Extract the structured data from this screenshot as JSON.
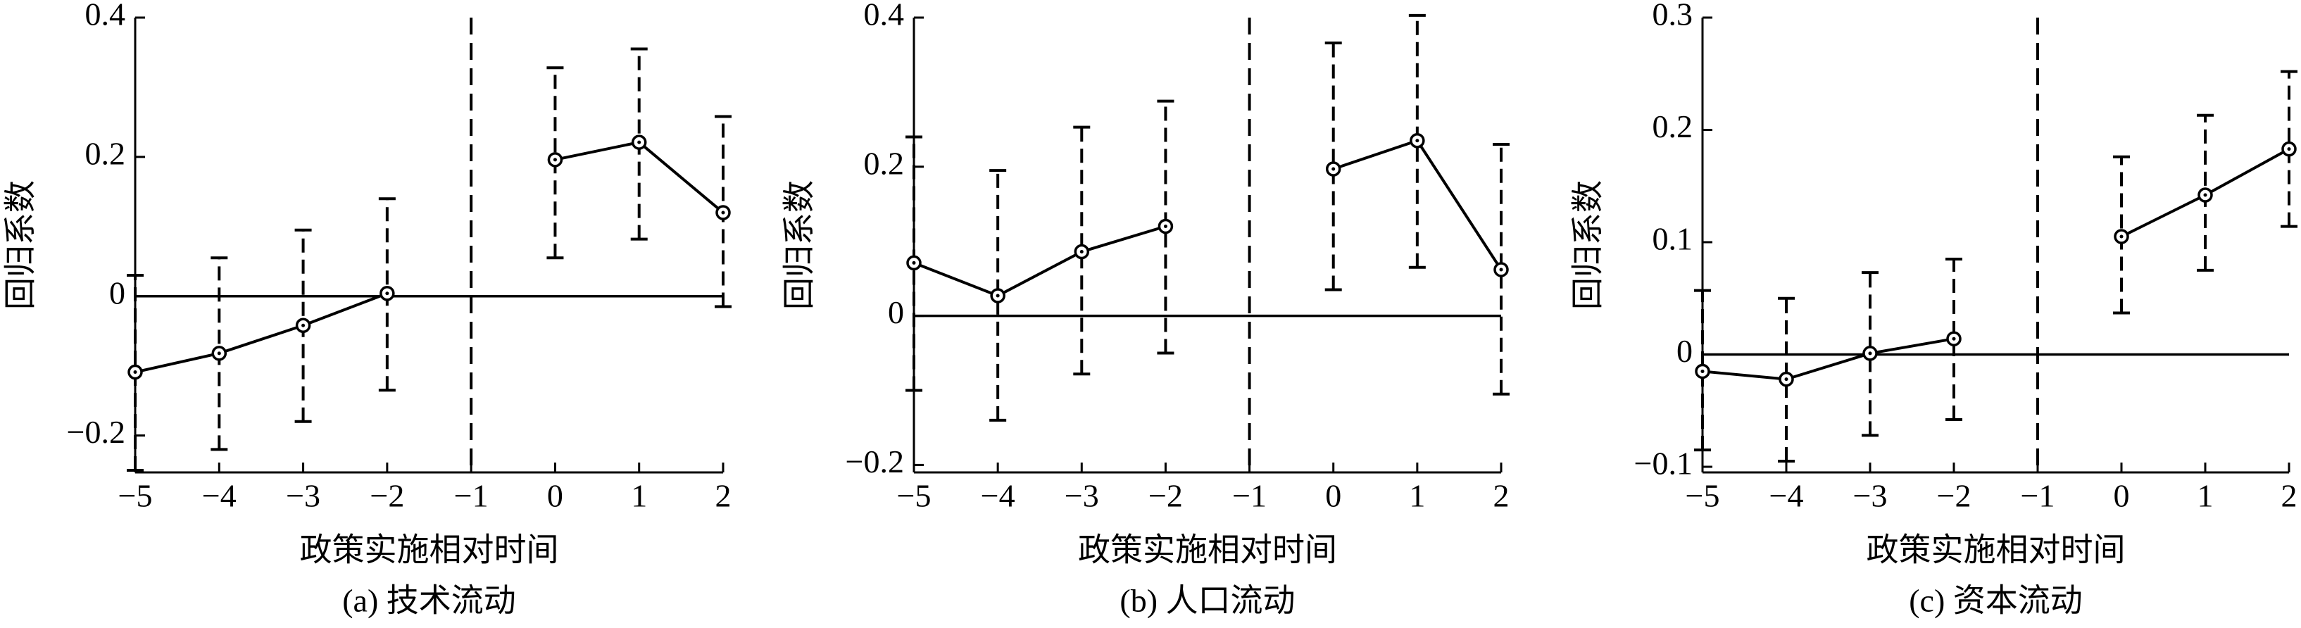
{
  "chart_data": [
    {
      "type": "line",
      "title": "(a) 技术流动",
      "xlabel": "政策实施相对时间",
      "ylabel": "回归系数",
      "x": [
        -5,
        -4,
        -3,
        -2,
        -1,
        0,
        1,
        2
      ],
      "series": [
        {
          "color": "#000000",
          "values": [
            -0.109,
            -0.082,
            -0.042,
            0.004,
            null,
            0.196,
            0.221,
            0.12
          ],
          "ci_lower": [
            -0.25,
            -0.22,
            -0.18,
            -0.135,
            null,
            0.055,
            0.082,
            -0.015
          ],
          "ci_upper": [
            0.03,
            0.055,
            0.095,
            0.14,
            null,
            0.328,
            0.355,
            0.258
          ]
        }
      ],
      "xlim": [
        -5,
        2
      ],
      "ylim": [
        -0.253,
        0.4
      ],
      "xticks": [
        {
          "value": -5,
          "label": "−5"
        },
        {
          "value": -4,
          "label": "−4"
        },
        {
          "value": -3,
          "label": "−3"
        },
        {
          "value": -2,
          "label": "−2"
        },
        {
          "value": -1,
          "label": "−1"
        },
        0,
        1,
        2
      ],
      "yticks": [
        {
          "value": -0.2,
          "label": "−0.2"
        },
        0,
        0.2,
        0.4
      ],
      "hline": 0,
      "vline": -1
    },
    {
      "type": "line",
      "title": "(b) 人口流动",
      "xlabel": "政策实施相对时间",
      "ylabel": "回归系数",
      "x": [
        -5,
        -4,
        -3,
        -2,
        -1,
        0,
        1,
        2
      ],
      "series": [
        {
          "color": "#000000",
          "values": [
            0.071,
            0.027,
            0.086,
            0.12,
            null,
            0.197,
            0.235,
            0.062
          ],
          "ci_lower": [
            -0.1,
            -0.14,
            -0.078,
            -0.05,
            null,
            0.035,
            0.065,
            -0.105
          ],
          "ci_upper": [
            0.24,
            0.195,
            0.253,
            0.288,
            null,
            0.366,
            0.403,
            0.23
          ]
        }
      ],
      "xlim": [
        -5,
        2
      ],
      "ylim": [
        -0.21,
        0.4
      ],
      "xticks": [
        {
          "value": -5,
          "label": "−5"
        },
        {
          "value": -4,
          "label": "−4"
        },
        {
          "value": -3,
          "label": "−3"
        },
        {
          "value": -2,
          "label": "−2"
        },
        {
          "value": -1,
          "label": "−1"
        },
        0,
        1,
        2
      ],
      "yticks": [
        {
          "value": -0.2,
          "label": "−0.2"
        },
        0,
        0.2,
        0.4
      ],
      "hline": 0,
      "vline": -1
    },
    {
      "type": "line",
      "title": "(c) 资本流动",
      "xlabel": "政策实施相对时间",
      "ylabel": "回归系数",
      "x": [
        -5,
        -4,
        -3,
        -2,
        -1,
        0,
        1,
        2
      ],
      "series": [
        {
          "color": "#000000",
          "values": [
            -0.015,
            -0.022,
            0.001,
            0.014,
            null,
            0.105,
            0.142,
            0.183
          ],
          "ci_lower": [
            -0.085,
            -0.095,
            -0.072,
            -0.058,
            null,
            0.037,
            0.075,
            0.114
          ],
          "ci_upper": [
            0.057,
            0.05,
            0.073,
            0.085,
            null,
            0.176,
            0.213,
            0.252
          ]
        }
      ],
      "xlim": [
        -5,
        2
      ],
      "ylim": [
        -0.105,
        0.3
      ],
      "xticks": [
        {
          "value": -5,
          "label": "−5"
        },
        {
          "value": -4,
          "label": "−4"
        },
        {
          "value": -3,
          "label": "−3"
        },
        {
          "value": -2,
          "label": "−2"
        },
        {
          "value": -1,
          "label": "−1"
        },
        0,
        1,
        2
      ],
      "yticks": [
        {
          "value": -0.1,
          "label": "−0.1"
        },
        0,
        0.1,
        0.2,
        0.3
      ],
      "hline": 0,
      "vline": -1
    }
  ]
}
